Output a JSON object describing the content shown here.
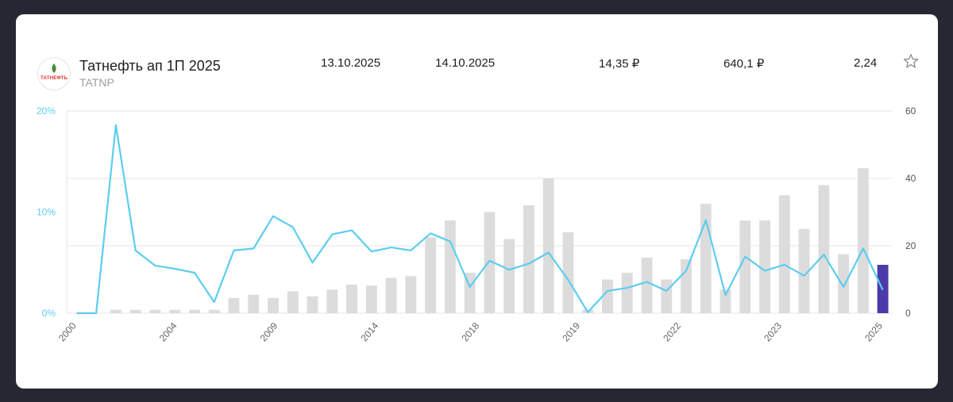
{
  "header": {
    "title": "Татнефть ап 1П 2025",
    "ticker": "TATNP",
    "date1": "13.10.2025",
    "date2": "14.10.2025",
    "dividend": "14,35 ₽",
    "price": "640,1 ₽",
    "yield": "2,24",
    "logo_text": "ТАТНЕФТЬ"
  },
  "colors": {
    "line": "#5ccdf0",
    "bar": "#dcdcdc",
    "bar_highlight": "#4b3aa8",
    "left_axis": "#5ccdf0",
    "right_axis": "#555555",
    "grid": "#e6e6e6"
  },
  "chart_data": {
    "type": "bar+line",
    "x_tick_labels": [
      "2000",
      "2004",
      "2009",
      "2014",
      "2018",
      "2019",
      "2022",
      "2023",
      "2025"
    ],
    "left_axis": {
      "ticks": [
        "0%",
        "10%",
        "20%"
      ],
      "ylim": [
        0,
        20
      ]
    },
    "right_axis": {
      "ticks": [
        "0",
        "20",
        "40",
        "60"
      ],
      "ylim": [
        0,
        60
      ]
    },
    "series": [
      {
        "type": "bar",
        "axis": "right",
        "values": [
          0,
          0,
          1,
          1,
          1,
          1,
          1,
          1,
          4.5,
          5.5,
          4.5,
          6.5,
          5,
          7,
          8.5,
          8.2,
          10.5,
          11,
          22.5,
          27.5,
          12,
          30,
          22,
          32,
          40,
          24,
          1,
          10,
          12,
          16.5,
          10,
          16,
          32.5,
          7,
          27.5,
          27.5,
          35,
          25,
          38,
          17.5,
          43,
          14.35
        ],
        "highlight_last": true
      },
      {
        "type": "line",
        "axis": "left",
        "values": [
          0,
          0,
          18.6,
          6.2,
          4.7,
          4.4,
          4,
          1.1,
          6.2,
          6.4,
          9.6,
          8.5,
          5,
          7.8,
          8.2,
          6.1,
          6.5,
          6.2,
          7.9,
          7.1,
          2.6,
          5.2,
          4.3,
          4.9,
          6,
          3.3,
          0.1,
          2.2,
          2.5,
          3.1,
          2.2,
          4.2,
          9.2,
          1.8,
          5.6,
          4.2,
          4.8,
          3.7,
          5.8,
          2.6,
          6.4,
          2.3
        ]
      }
    ]
  }
}
